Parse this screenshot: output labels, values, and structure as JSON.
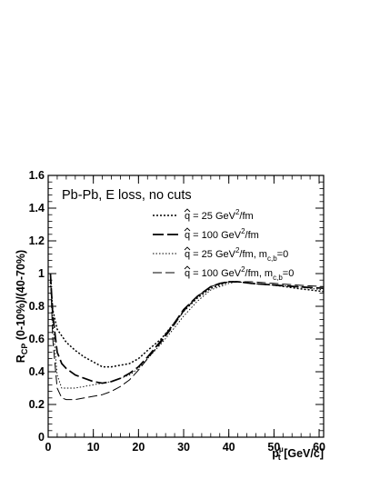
{
  "chart_data": {
    "type": "line",
    "annotation": "Pb-Pb, E loss, no cuts",
    "xlabel": {
      "main": "p",
      "sub": "t",
      "sup": "μ",
      "unit": " [GeV/c]"
    },
    "ylabel": {
      "main": "R",
      "sub": "CP",
      "rest": " (0-10%)/(40-70%)"
    },
    "xlim": [
      0,
      61
    ],
    "ylim": [
      0,
      1.6
    ],
    "xticks": [
      0,
      10,
      20,
      30,
      40,
      50,
      60
    ],
    "yticks": [
      0,
      0.2,
      0.4,
      0.6,
      0.8,
      1,
      1.2,
      1.4,
      1.6
    ],
    "xtick_labels": [
      "0",
      "10",
      "20",
      "30",
      "40",
      "50",
      "60"
    ],
    "ytick_labels": [
      "0",
      "0.2",
      "0.4",
      "0.6",
      "0.8",
      "1",
      "1.2",
      "1.4",
      "1.6"
    ],
    "grid": false,
    "legend_position": "top-right",
    "series": [
      {
        "name": "q̂ = 25 GeV²/fm",
        "legend": {
          "hat": "q",
          "pre": " = 25 GeV",
          "sup": "2",
          "post": "/fm",
          "sub_label": "",
          "sub": "",
          "tail": ""
        },
        "style": "dotted-thick",
        "x": [
          0.5,
          1,
          2,
          3,
          4,
          6,
          8,
          10,
          12,
          14,
          16,
          18,
          20,
          22,
          25,
          28,
          30,
          33,
          36,
          38,
          40,
          42,
          45,
          50,
          55,
          61
        ],
        "y": [
          0.95,
          0.78,
          0.66,
          0.62,
          0.58,
          0.53,
          0.49,
          0.46,
          0.43,
          0.43,
          0.44,
          0.45,
          0.48,
          0.53,
          0.6,
          0.7,
          0.77,
          0.85,
          0.91,
          0.93,
          0.95,
          0.95,
          0.94,
          0.93,
          0.91,
          0.89
        ]
      },
      {
        "name": "q̂ = 100 GeV²/fm",
        "legend": {
          "hat": "q",
          "pre": " = 100 GeV",
          "sup": "2",
          "post": "/fm",
          "sub_label": "",
          "sub": "",
          "tail": ""
        },
        "style": "dashed-thick",
        "x": [
          0.5,
          1,
          2,
          3,
          4,
          6,
          8,
          10,
          12,
          14,
          16,
          18,
          20,
          22,
          25,
          28,
          30,
          33,
          36,
          38,
          40,
          42,
          45,
          50,
          55,
          61
        ],
        "y": [
          1.0,
          0.75,
          0.52,
          0.45,
          0.42,
          0.38,
          0.36,
          0.34,
          0.33,
          0.34,
          0.36,
          0.39,
          0.43,
          0.49,
          0.59,
          0.7,
          0.78,
          0.86,
          0.92,
          0.94,
          0.95,
          0.95,
          0.94,
          0.93,
          0.92,
          0.91
        ]
      },
      {
        "name": "q̂ = 25 GeV²/fm, m_c,b=0",
        "legend": {
          "hat": "q",
          "pre": " = 25 GeV",
          "sup": "2",
          "post": "/fm, m",
          "sub": "c,b",
          "tail": "=0"
        },
        "style": "dotted-thin",
        "x": [
          0.5,
          1,
          2,
          3,
          4,
          6,
          8,
          10,
          12,
          14,
          16,
          18,
          20,
          22,
          25,
          28,
          30,
          33,
          36,
          38,
          40,
          42,
          45,
          50,
          55,
          61
        ],
        "y": [
          1.0,
          0.7,
          0.38,
          0.3,
          0.3,
          0.3,
          0.31,
          0.32,
          0.33,
          0.34,
          0.36,
          0.38,
          0.42,
          0.48,
          0.57,
          0.67,
          0.74,
          0.83,
          0.9,
          0.92,
          0.94,
          0.95,
          0.94,
          0.93,
          0.92,
          0.9
        ]
      },
      {
        "name": "q̂ = 100 GeV²/fm, m_c,b=0",
        "legend": {
          "hat": "q",
          "pre": " = 100 GeV",
          "sup": "2",
          "post": "/fm, m",
          "sub": "c,b",
          "tail": "=0"
        },
        "style": "dashed-thin",
        "x": [
          0.5,
          1,
          2,
          3,
          4,
          6,
          8,
          10,
          12,
          14,
          16,
          18,
          20,
          22,
          25,
          28,
          30,
          33,
          36,
          38,
          40,
          42,
          45,
          50,
          55,
          61
        ],
        "y": [
          1.0,
          0.6,
          0.3,
          0.24,
          0.23,
          0.23,
          0.24,
          0.25,
          0.26,
          0.28,
          0.31,
          0.35,
          0.41,
          0.48,
          0.58,
          0.69,
          0.77,
          0.86,
          0.92,
          0.94,
          0.95,
          0.95,
          0.95,
          0.94,
          0.93,
          0.92
        ]
      }
    ]
  }
}
